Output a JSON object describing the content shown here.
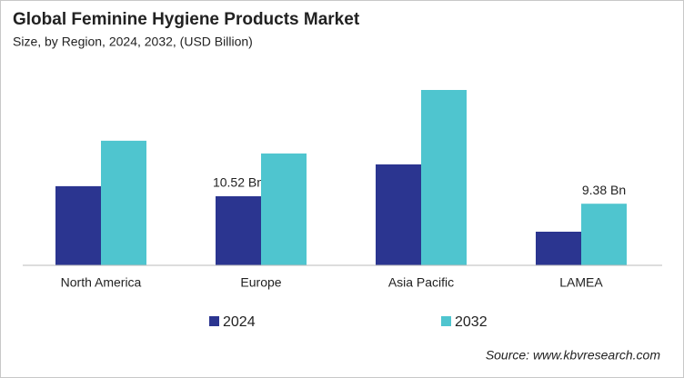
{
  "chart_data": {
    "type": "bar",
    "title": "Global Feminine Hygiene Products  Market",
    "subtitle": "Size, by Region, 2024, 2032, (USD Billion)",
    "categories": [
      "North America",
      "Europe",
      "Asia Pacific",
      "LAMEA"
    ],
    "series": [
      {
        "name": "2024",
        "color": "#2b3590",
        "values": [
          12.05,
          10.52,
          15.37,
          5.12
        ],
        "value_labels": [
          null,
          "10.52 Bn",
          null,
          null
        ]
      },
      {
        "name": "2032",
        "color": "#4fc5cf",
        "values": [
          18.97,
          17.03,
          26.7,
          9.38
        ],
        "value_labels": [
          null,
          null,
          null,
          "9.38 Bn"
        ]
      }
    ],
    "legend": "bottom",
    "source": "Source: www.kbvresearch.com"
  }
}
